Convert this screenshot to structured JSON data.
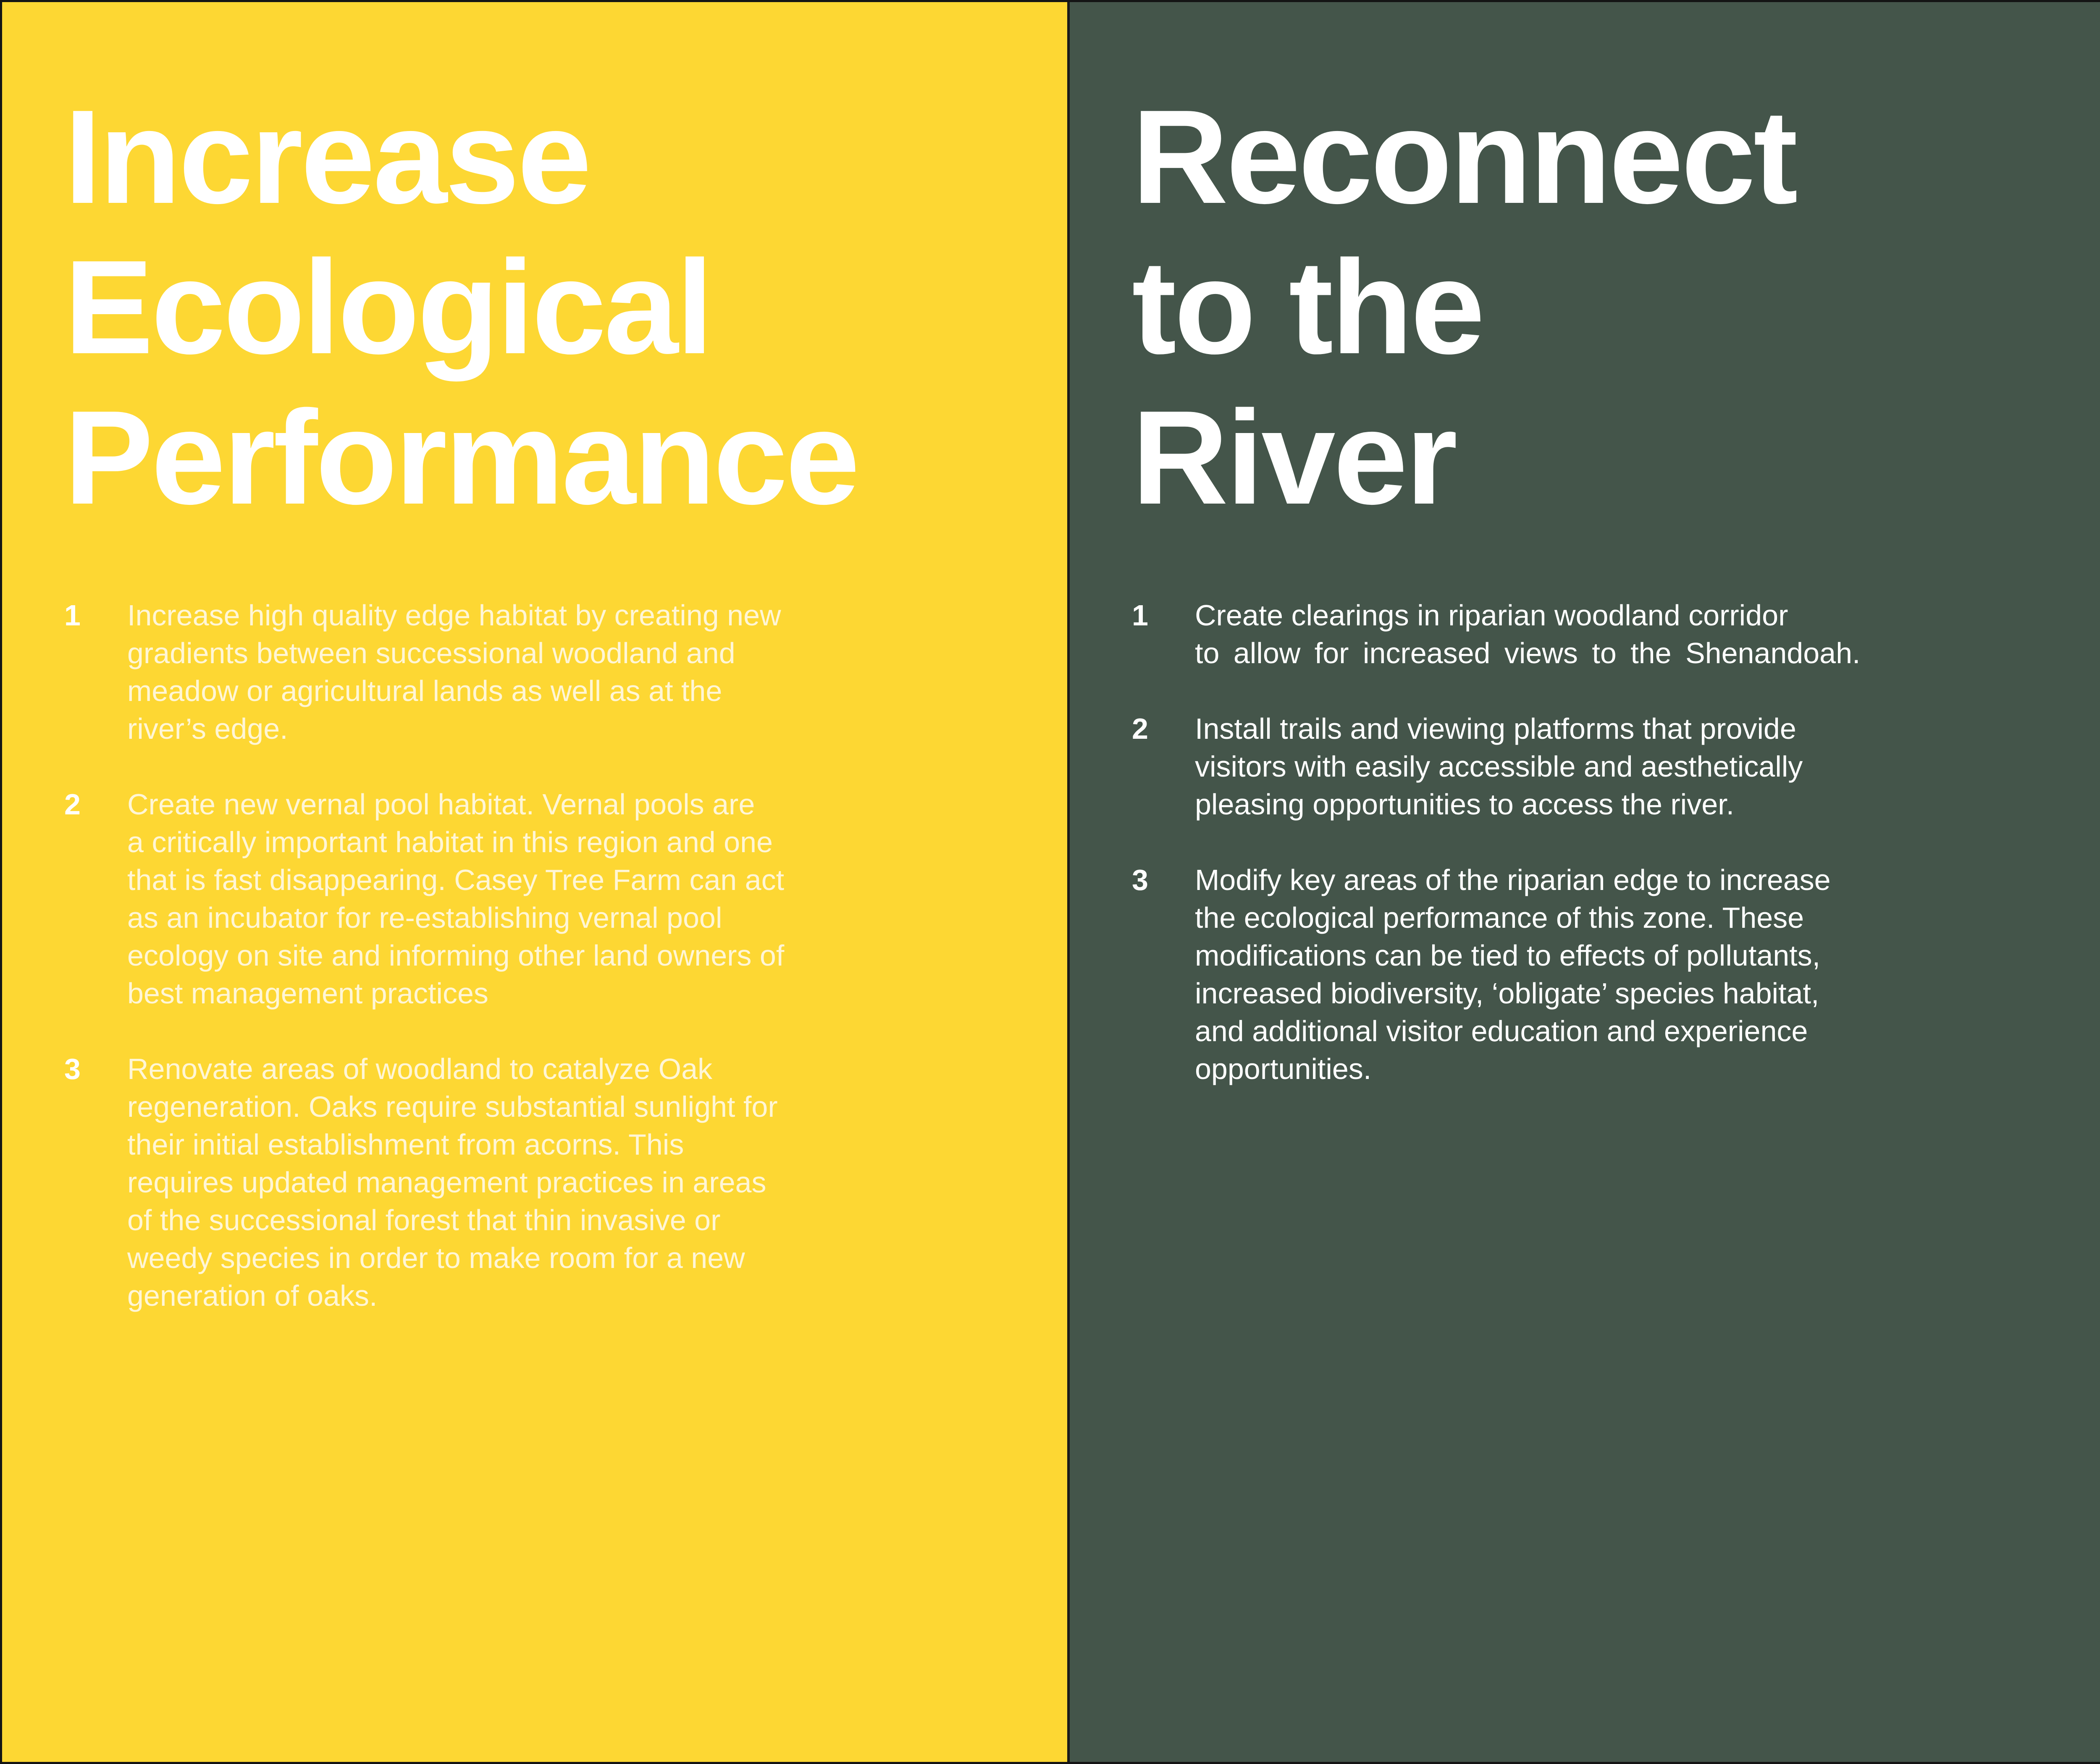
{
  "colors": {
    "left_panel_bg": "#fdd733",
    "right_panel_bg": "#44554a",
    "text": "#ffffff"
  },
  "left_panel": {
    "title_lines": [
      "Increase",
      "Ecological",
      "Performance"
    ],
    "items": [
      {
        "number": "1",
        "lines": [
          "Increase high quality edge habitat by creating new",
          "gradients between successional woodland and",
          "meadow or agricultural lands as well as at the",
          "river’s edge."
        ]
      },
      {
        "number": "2",
        "lines": [
          "Create new vernal pool habitat. Vernal pools are",
          "a critically important habitat in this region and one",
          "that is fast disappearing. Casey Tree Farm can act",
          "as an incubator for re-establishing vernal pool",
          "ecology on site and informing other land owners of",
          "best management practices"
        ]
      },
      {
        "number": "3",
        "lines": [
          "Renovate areas of woodland to catalyze Oak",
          "regeneration. Oaks require substantial sunlight for",
          "their initial establishment from acorns. This",
          "requires updated management practices in areas",
          "of the successional forest that thin invasive or",
          "weedy species in order to make room for a new",
          "generation of oaks."
        ]
      }
    ]
  },
  "right_panel": {
    "title_lines": [
      "Reconnect",
      "to the",
      "River"
    ],
    "items": [
      {
        "number": "1",
        "lines": [
          "Create clearings in riparian woodland corridor",
          "to allow for increased views to the Shenandoah."
        ]
      },
      {
        "number": "2",
        "lines": [
          "Install trails and viewing platforms that provide",
          "visitors with easily accessible and aesthetically",
          "pleasing opportunities to access the river."
        ]
      },
      {
        "number": "3",
        "lines": [
          "Modify key areas of the riparian edge to increase",
          "the ecological performance of this zone. These",
          "modifications can be tied to effects of pollutants,",
          "increased biodiversity, ‘obligate’ species habitat,",
          "and additional visitor education and experience",
          "opportunities."
        ]
      }
    ]
  }
}
